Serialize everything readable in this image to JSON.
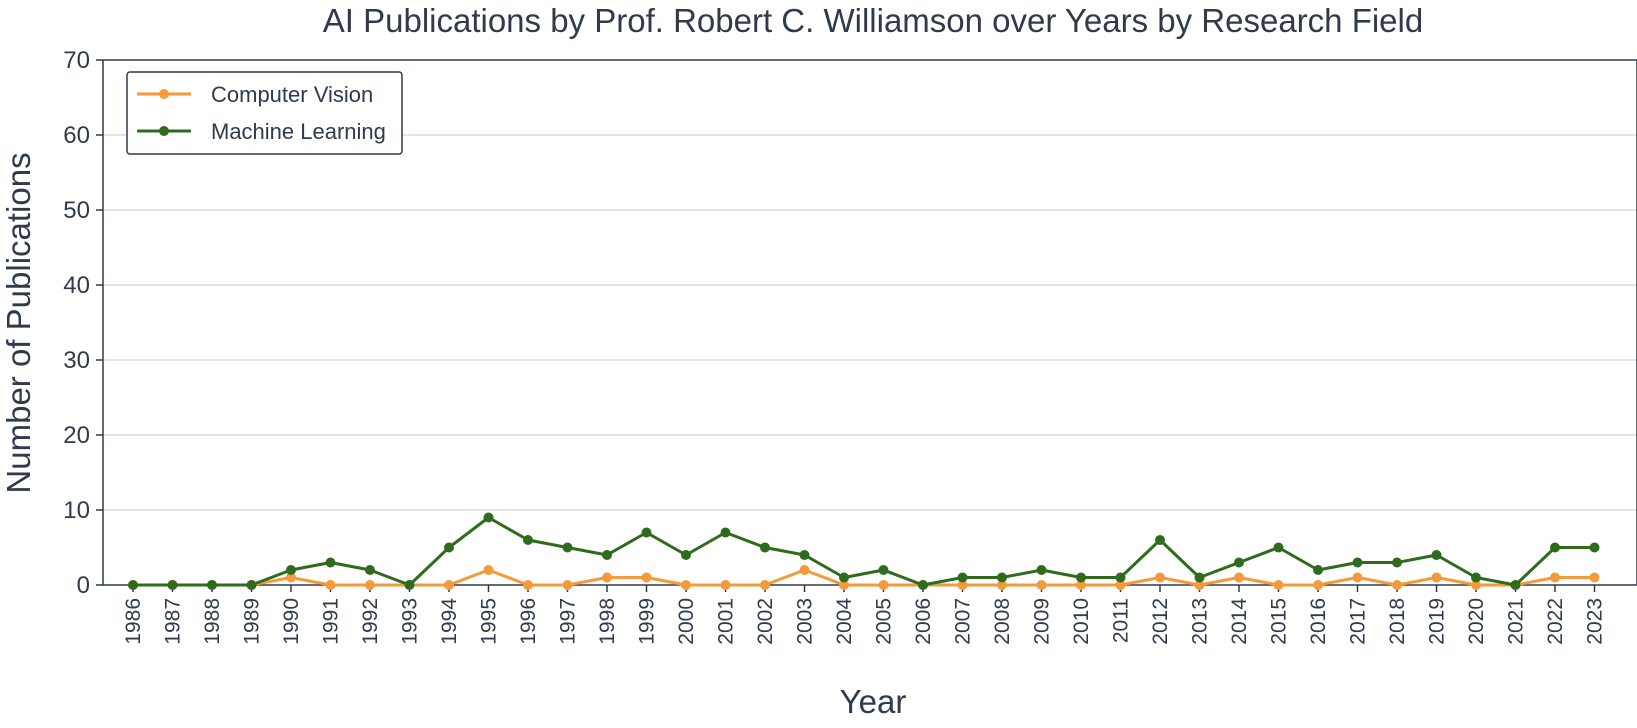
{
  "chart_data": {
    "type": "line",
    "title": "AI Publications by Prof. Robert C. Williamson over Years by Research Field",
    "xlabel": "Year",
    "ylabel": "Number of Publications",
    "ylim": [
      0,
      70
    ],
    "yticks": [
      0,
      10,
      20,
      30,
      40,
      50,
      60,
      70
    ],
    "grid": "horizontal",
    "legend_position": "top-left",
    "categories": [
      "1986",
      "1987",
      "1988",
      "1989",
      "1990",
      "1991",
      "1992",
      "1993",
      "1994",
      "1995",
      "1996",
      "1997",
      "1998",
      "1999",
      "2000",
      "2001",
      "2002",
      "2003",
      "2004",
      "2005",
      "2006",
      "2007",
      "2008",
      "2009",
      "2010",
      "2011",
      "2012",
      "2013",
      "2014",
      "2015",
      "2016",
      "2017",
      "2018",
      "2019",
      "2020",
      "2021",
      "2022",
      "2023"
    ],
    "series": [
      {
        "name": "Computer Vision",
        "color": "#f59a3a",
        "values": [
          0,
          0,
          0,
          0,
          1,
          0,
          0,
          0,
          0,
          2,
          0,
          0,
          1,
          1,
          0,
          0,
          0,
          2,
          0,
          0,
          0,
          0,
          0,
          0,
          0,
          0,
          1,
          0,
          1,
          0,
          0,
          1,
          0,
          1,
          0,
          0,
          1,
          1
        ]
      },
      {
        "name": "Machine Learning",
        "color": "#2e6b1c",
        "values": [
          0,
          0,
          0,
          0,
          2,
          3,
          2,
          0,
          5,
          9,
          6,
          5,
          4,
          7,
          4,
          7,
          5,
          4,
          1,
          2,
          0,
          1,
          1,
          2,
          1,
          1,
          6,
          1,
          3,
          5,
          2,
          3,
          3,
          4,
          1,
          0,
          5,
          5
        ]
      }
    ]
  }
}
